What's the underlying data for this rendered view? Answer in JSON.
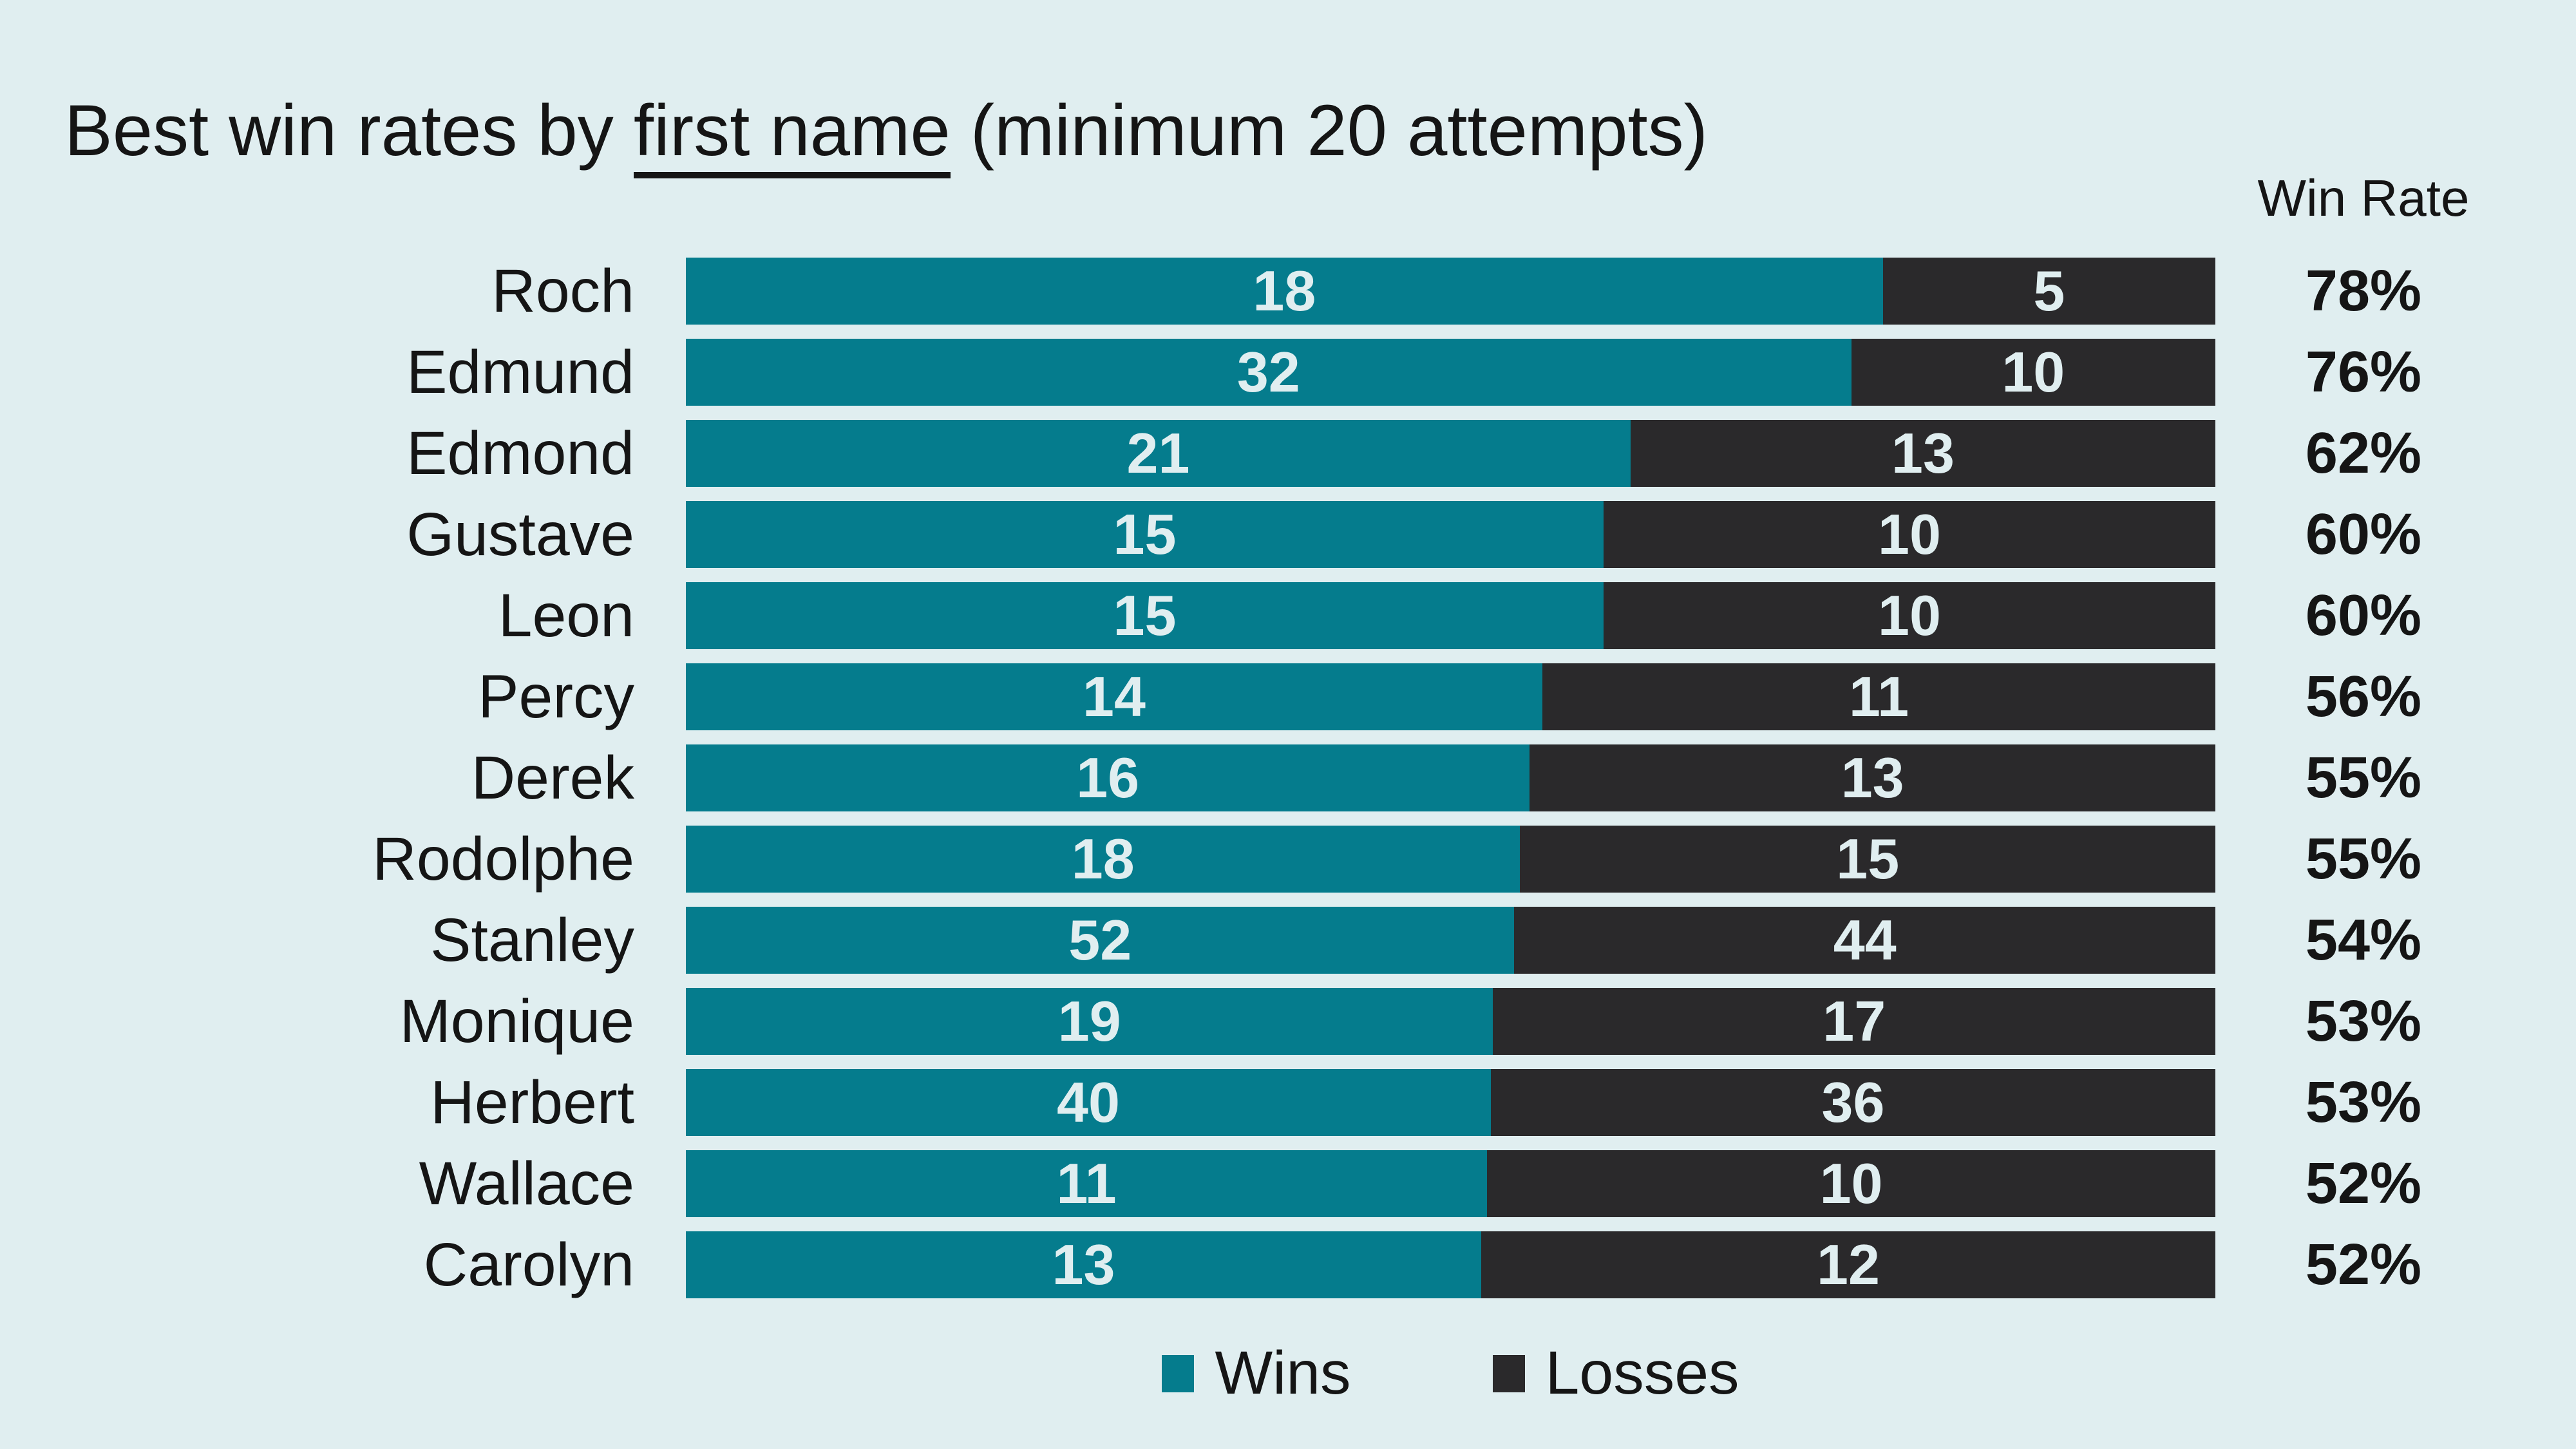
{
  "title": {
    "prefix": "Best win rates by ",
    "underlined": "first name",
    "suffix": " (minimum 20 attempts)"
  },
  "columns": {
    "win_rate_header": "Win Rate"
  },
  "colors": {
    "background": "#e0eef0",
    "ink": "#151515",
    "wins": "#057c8d",
    "losses": "#2a292b",
    "bar_text": "#e0eef0"
  },
  "chart_data": {
    "type": "bar",
    "subtype": "horizontal_stacked_100pct",
    "title": "Best win rates by first name (minimum 20 attempts)",
    "categories": [
      "Roch",
      "Edmund",
      "Edmond",
      "Gustave",
      "Leon",
      "Percy",
      "Derek",
      "Rodolphe",
      "Stanley",
      "Monique",
      "Herbert",
      "Wallace",
      "Carolyn"
    ],
    "series": [
      {
        "name": "Wins",
        "values": [
          18,
          32,
          21,
          15,
          15,
          14,
          16,
          18,
          52,
          19,
          40,
          11,
          13
        ]
      },
      {
        "name": "Losses",
        "values": [
          5,
          10,
          13,
          10,
          10,
          11,
          13,
          15,
          44,
          17,
          36,
          10,
          12
        ]
      }
    ],
    "win_rate_labels": [
      "78%",
      "76%",
      "62%",
      "60%",
      "60%",
      "56%",
      "55%",
      "55%",
      "54%",
      "53%",
      "53%",
      "52%",
      "52%"
    ],
    "value_labels": "inside-segments",
    "legend_position": "bottom",
    "axes_shown": false,
    "x_range_proportion": [
      0,
      1
    ]
  }
}
